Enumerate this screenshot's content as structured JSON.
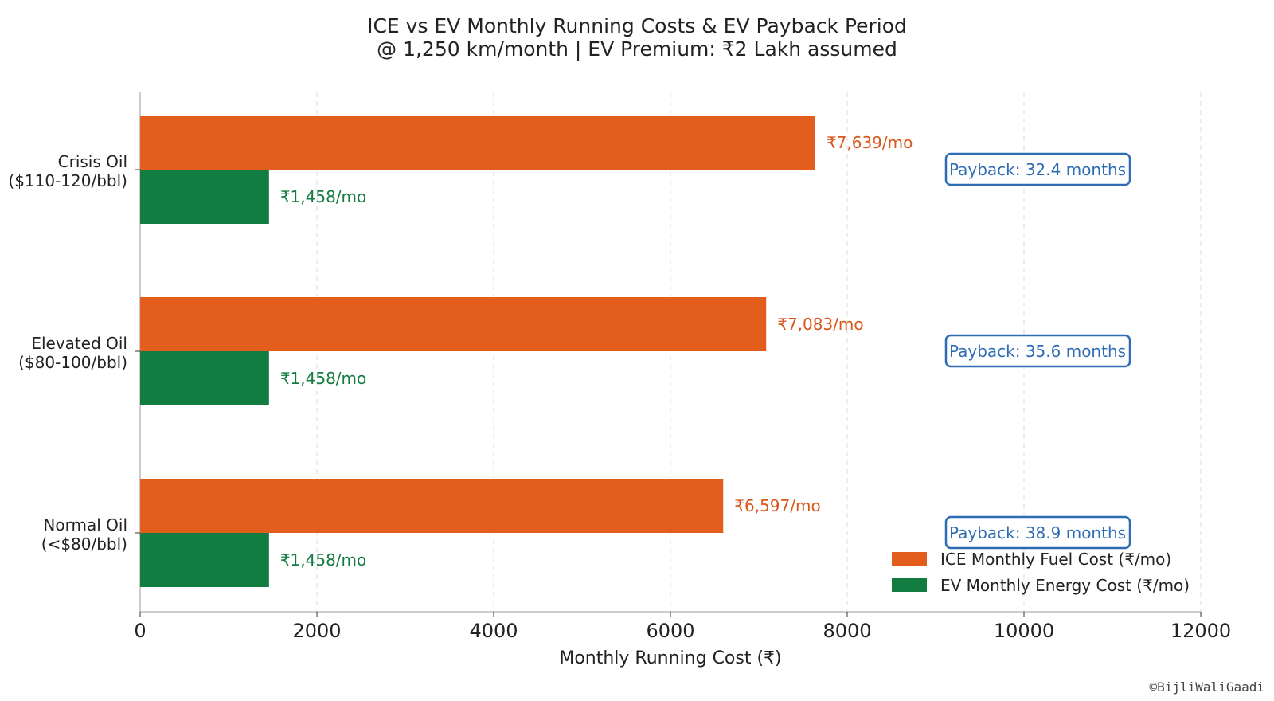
{
  "chart_data": {
    "type": "bar",
    "orientation": "horizontal",
    "title": "ICE vs EV Monthly Running Costs & EV Payback Period",
    "subtitle": "@ 1,250 km/month | EV Premium: ₹2 Lakh assumed",
    "xlabel": "Monthly Running Cost (₹)",
    "ylabel": "",
    "xlim": [
      0,
      12000
    ],
    "xticks": [
      "0",
      "2000",
      "4000",
      "6000",
      "8000",
      "10000",
      "12000"
    ],
    "grid": "vertical dashed",
    "legend_position": "lower-right",
    "categories": [
      {
        "line1": "Crisis Oil",
        "line2": "($110-120/bbl)"
      },
      {
        "line1": "Elevated Oil",
        "line2": "($80-100/bbl)"
      },
      {
        "line1": "Normal Oil",
        "line2": "(<$80/bbl)"
      }
    ],
    "series": [
      {
        "name": "ICE Monthly Fuel Cost (₹/mo)",
        "color": "#E35D1C",
        "label_color": "#D9571A",
        "values": [
          7639,
          7083,
          6597
        ],
        "labels": [
          "₹7,639/mo",
          "₹7,083/mo",
          "₹6,597/mo"
        ]
      },
      {
        "name": "EV Monthly Energy Cost (₹/mo)",
        "color": "#137C40",
        "label_color": "#137C40",
        "values": [
          1458,
          1458,
          1458
        ],
        "labels": [
          "₹1,458/mo",
          "₹1,458/mo",
          "₹1,458/mo"
        ]
      }
    ],
    "annotations": [
      {
        "text": "Payback: 32.4 months",
        "value": 32.4,
        "color": "#2E6DB4"
      },
      {
        "text": "Payback: 35.6 months",
        "value": 35.6,
        "color": "#2E6DB4"
      },
      {
        "text": "Payback: 38.9 months",
        "value": 38.9,
        "color": "#2E6DB4"
      }
    ]
  },
  "watermark": "©BijliWaliGaadi"
}
